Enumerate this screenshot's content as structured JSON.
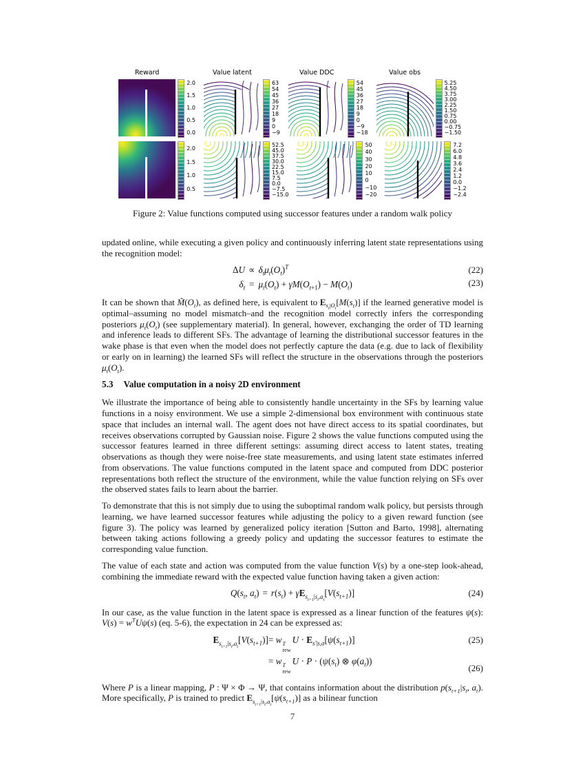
{
  "page": {
    "number": "7"
  },
  "figure": {
    "caption": "Figure 2: Value functions computed using successor features under a random walk policy",
    "palette_viridis": [
      "#fde725",
      "#d2e21b",
      "#a5db36",
      "#7ad151",
      "#54c568",
      "#35b779",
      "#22a884",
      "#1f988b",
      "#21918c",
      "#23888e",
      "#2a788e",
      "#31688e",
      "#39568c",
      "#414487",
      "#472f7d",
      "#440154"
    ],
    "rows": [
      {
        "panels": [
          {
            "title": "Reward",
            "ticks": [
              "2.0",
              "1.5",
              "1.0",
              "0.5",
              "0.0"
            ]
          },
          {
            "title": "Value latent",
            "ticks": [
              "63",
              "54",
              "45",
              "36",
              "27",
              "18",
              "9",
              "0",
              "−9"
            ]
          },
          {
            "title": "Value DDC",
            "ticks": [
              "54",
              "45",
              "36",
              "27",
              "18",
              "9",
              "0",
              "−9",
              "−18"
            ]
          },
          {
            "title": "Value obs",
            "ticks": [
              "5.25",
              "4.50",
              "3.75",
              "3.00",
              "2.25",
              "1.50",
              "0.75",
              "0.00",
              "−0.75",
              "−1.50"
            ]
          }
        ]
      },
      {
        "panels": [
          {
            "title": "",
            "ticks": [
              "2.0",
              "1.5",
              "1.0",
              "0.5"
            ]
          },
          {
            "title": "",
            "ticks": [
              "52.5",
              "45.0",
              "37.5",
              "30.0",
              "22.5",
              "15.0",
              "7.5",
              "0.0",
              "−7.5",
              "−15.0"
            ]
          },
          {
            "title": "",
            "ticks": [
              "50",
              "40",
              "30",
              "20",
              "10",
              "0",
              "−10",
              "−20"
            ]
          },
          {
            "title": "",
            "ticks": [
              "7.2",
              "6.0",
              "4.8",
              "3.6",
              "2.4",
              "1.2",
              "0.0",
              "−1.2",
              "−2.4"
            ]
          }
        ]
      }
    ]
  },
  "content": {
    "p1": "updated online, while executing a given policy and continuously inferring latent state representations using the recognition model:",
    "eq22": {
      "l": "Δ<i>U</i>",
      "m": "∝",
      "r": "<i>δ<sub>t</sub>μ<sub>t</sub></i>(<i>O<sub>t</sub></i>)<sup><i>T</i></sup>",
      "num": "(22)"
    },
    "eq23": {
      "l": "<i>δ<sub>t</sub></i>",
      "m": "=",
      "r": "<i>μ<sub>t</sub></i>(<i>O<sub>t</sub></i>) + <i>γM</i>(<i>O</i><sub><i>t</i>+1</sub>) − <i>M</i>(<i>O<sub>t</sub></i>)",
      "num": "(23)"
    },
    "p2": "It can be shown that <i>M̃</i>(<i>O<sub>t</sub></i>), as defined here, is equivalent to <b>E</b><sub><i>s<sub>t</sub></i>|<i>O<sub>t</sub></i></sub>[<i>M</i>(<i>s<sub>t</sub></i>)] if the learned generative model is optimal–assuming no model mismatch–and the recognition model correctly infers the corresponding posteriors <i>μ<sub>t</sub></i>(<i>O<sub>t</sub></i>) (see supplementary material). In general, however, exchanging the order of TD learning and inference leads to different SFs. The advantage of learning the distributional successor features in the wake phase is that even when the model does not perfectly capture the data (e.g. due to lack of flexibility or early on in learning) the learned SFs will reflect the structure in the observations through the posteriors <i>μ<sub>t</sub></i>(<i>O<sub>t</sub></i>).",
    "heading": {
      "num": "5.3",
      "title": "Value computation in a noisy 2D environment"
    },
    "p3": "We illustrate the importance of being able to consistently handle uncertainty in the SFs by learning value functions in a noisy environment.  We use a simple 2-dimensional box environment with continuous state space that includes an internal wall. The agent does not have direct access to its spatial coordinates, but receives observations corrupted by Gaussian noise. Figure 2 shows the value functions computed using the successor features learned in three different settings: assuming direct access to latent states, treating observations as though they were noise-free state measurements, and using latent state estimates inferred from observations. The value functions computed in the latent space and computed from DDC posterior representations both reflect the structure of the environment, while the value function relying on SFs over the observed states fails to learn about the barrier.",
    "p4": "To demonstrate that this is not simply due to using the suboptimal random walk policy, but persists through learning, we have learned successor features while adjusting the policy to a given reward function (see figure 3). The policy was learned by generalized policy iteration [Sutton and Barto, 1998], alternating between taking actions following a greedy policy and updating the successor features to estimate the corresponding value function.",
    "p5": "The value of each state and action was computed from the value function <i>V</i>(<i>s</i>) by a one-step look-ahead, combining the immediate reward with the expected value function having taken a given action:",
    "eq24": {
      "l": "<i>Q</i>(<i>s<sub>t</sub></i>, <i>a<sub>t</sub></i>)",
      "m": "=",
      "r": "<i>r</i>(<i>s<sub>t</sub></i>) + <i>γ</i><b>E</b><sub><i>s<sub>t+1</sub></i>|<i>s<sub>t</sub></i>,<i>a<sub>t</sub></i></sub>[<i>V</i>(<i>s<sub>t+1</sub></i>)]",
      "num": "(24)"
    },
    "p6": "In our case, as the value function in the latent space is expressed as a linear function of the features <i>ψ</i>(<i>s</i>): <i>V</i>(<i>s</i>) = <i>w<sup>T</sup>Uψ</i>(<i>s</i>) (eq. 5-6), the expectation in 24 can be expressed as:",
    "eq25": {
      "l": "<b>E</b><sub><i>s<sub>t+1</sub></i>|<i>s<sub>t</sub></i>,<i>a<sub>t</sub></i></sub>[<i>V</i>(<i>s<sub>t+1</sub></i>)]",
      "r": "= <i>w</i><span class='ss'><span><i>T</i></span><span>rew</span></span><i>U</i> · <b>E</b><sub><i>s′</i>|<i>s</i>,<i>a</i></sub>[<i>ψ</i>(<i>s<sub>t+1</sub></i>)]",
      "num": "(25)"
    },
    "eq26": {
      "l": "",
      "r": "= <i>w</i><span class='ss'><span><i>T</i></span><span>rew</span></span><i>U</i> · <i>P</i> · (<i>ψ</i>(<i>s<sub>t</sub></i>) ⊗ <i>φ</i>(<i>a<sub>t</sub></i>))",
      "num": "(26)"
    },
    "p7": "Where <i>P</i> is a linear mapping, <i>P</i> : Ψ × Φ → Ψ, that contains information about the distribution <i>p</i>(<i>s<sub>t+1</sub></i>|<i>s<sub>t</sub></i>, <i>a<sub>t</sub></i>). More specifically, <i>P</i> is trained to predict <b>E</b><sub><i>s<sub>t+1</sub></i>|<i>s<sub>t</sub></i>,<i>a<sub>t</sub></i></sub>[<i>ψ</i>(<i>s<sub>t+1</sub></i>)] as a bilinear function"
  }
}
